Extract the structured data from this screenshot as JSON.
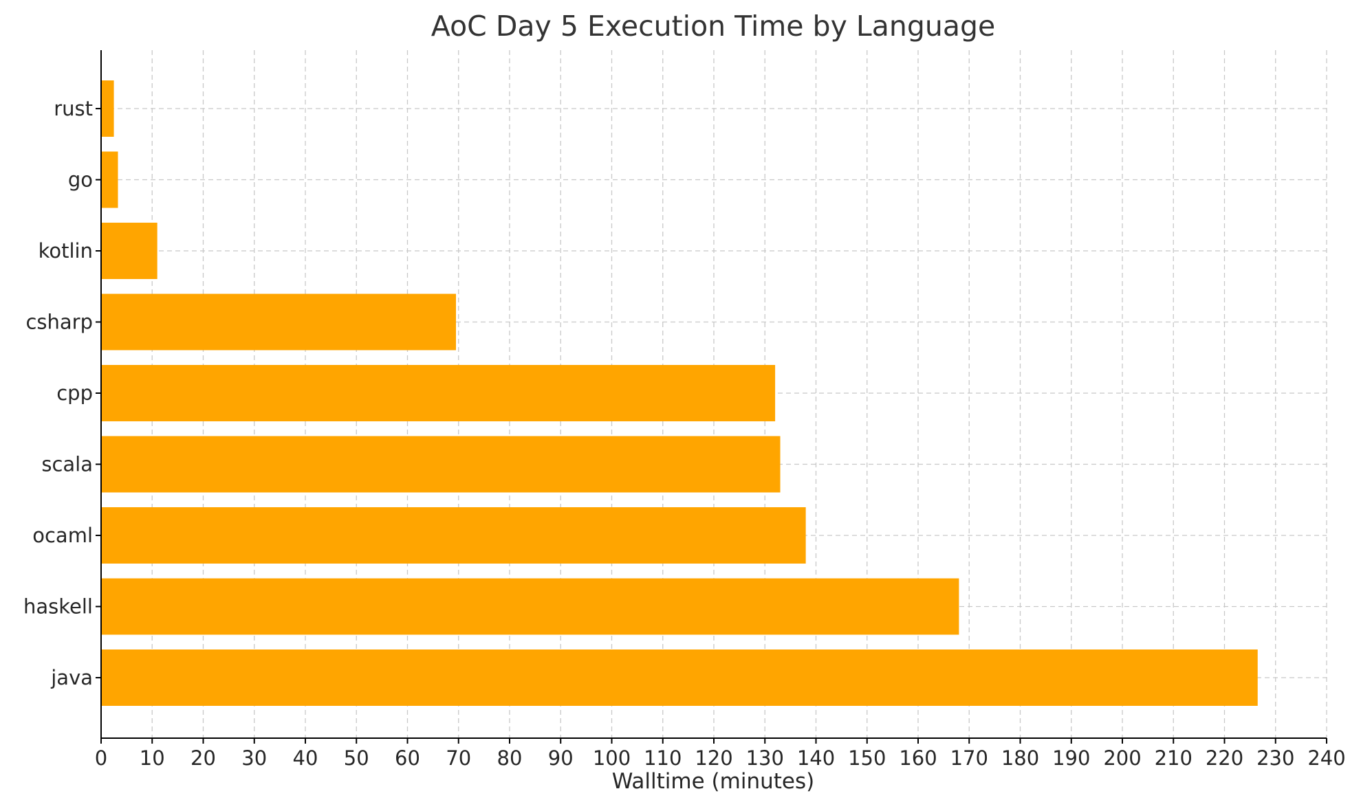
{
  "chart_data": {
    "type": "bar",
    "orientation": "horizontal",
    "title": "AoC Day 5 Execution Time by Language",
    "xlabel": "Walltime (minutes)",
    "ylabel": "",
    "categories": [
      "rust",
      "go",
      "kotlin",
      "csharp",
      "cpp",
      "scala",
      "ocaml",
      "haskell",
      "java"
    ],
    "values": [
      2.5,
      3.3,
      11,
      69.5,
      132,
      133,
      138,
      168,
      226.5
    ],
    "xlim": [
      0,
      240
    ],
    "xticks": [
      0,
      10,
      20,
      30,
      40,
      50,
      60,
      70,
      80,
      90,
      100,
      110,
      120,
      130,
      140,
      150,
      160,
      170,
      180,
      190,
      200,
      210,
      220,
      230,
      240
    ],
    "bar_color": "#FFA500",
    "grid": true,
    "legend": "none"
  }
}
